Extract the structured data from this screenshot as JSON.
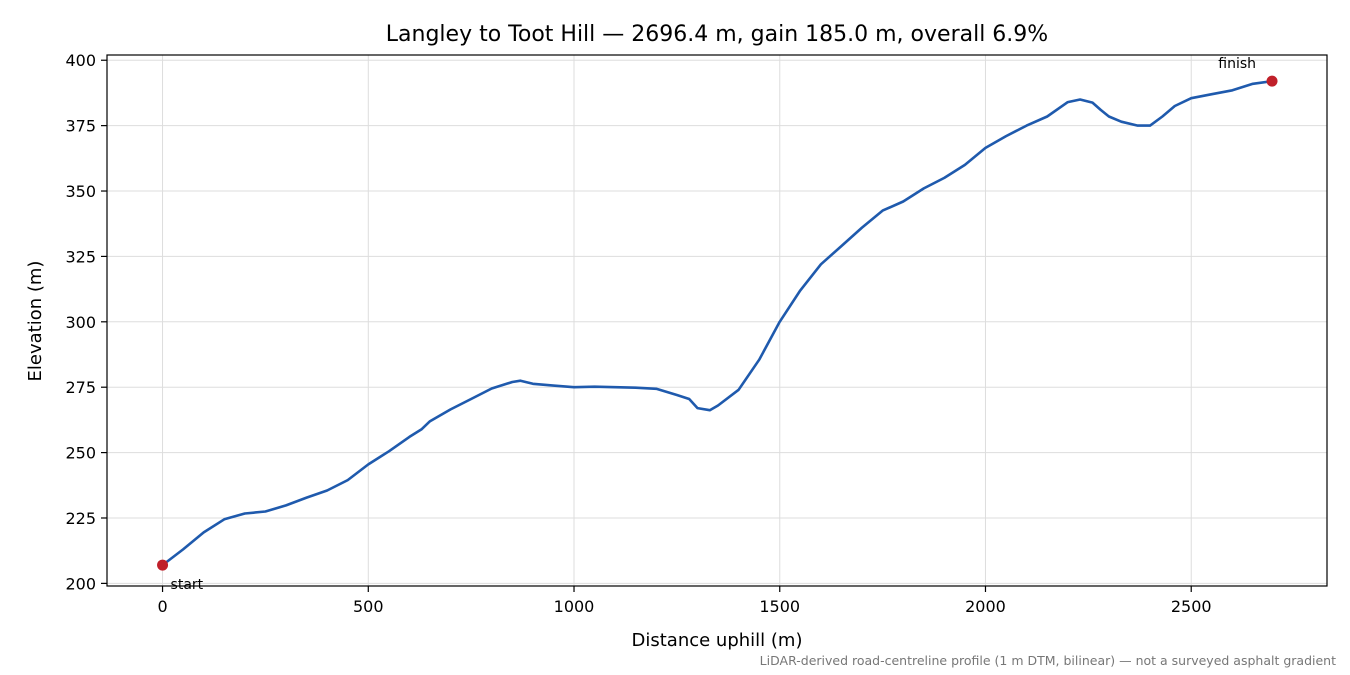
{
  "chart_data": {
    "type": "line",
    "title": "Langley to Toot Hill — 2696.4 m, gain 185.0 m, overall 6.9%",
    "xlabel": "Distance uphill (m)",
    "ylabel": "Elevation (m)",
    "xlim": [
      -135,
      2830
    ],
    "ylim": [
      199,
      402
    ],
    "xticks": [
      0,
      500,
      1000,
      1500,
      2000,
      2500
    ],
    "yticks": [
      200,
      225,
      250,
      275,
      300,
      325,
      350,
      375,
      400
    ],
    "grid": true,
    "line_color": "#1f5aad",
    "marker_color": "#c0202a",
    "series": [
      {
        "x": [
          0,
          50,
          100,
          150,
          200,
          250,
          300,
          350,
          400,
          450,
          500,
          550,
          600,
          630,
          650,
          700,
          750,
          800,
          850,
          870,
          900,
          950,
          1000,
          1050,
          1100,
          1150,
          1200,
          1250,
          1280,
          1300,
          1330,
          1350,
          1400,
          1450,
          1500,
          1550,
          1600,
          1650,
          1700,
          1750,
          1800,
          1850,
          1900,
          1950,
          2000,
          2050,
          2100,
          2150,
          2200,
          2230,
          2260,
          2280,
          2300,
          2330,
          2370,
          2400,
          2430,
          2460,
          2500,
          2550,
          2600,
          2650,
          2696.4
        ],
        "y": [
          207.0,
          213.0,
          219.5,
          224.5,
          226.7,
          227.5,
          229.8,
          232.8,
          235.5,
          239.5,
          245.5,
          250.5,
          256.0,
          259.0,
          262.0,
          266.5,
          270.5,
          274.5,
          277.0,
          277.5,
          276.3,
          275.6,
          275.0,
          275.2,
          275.0,
          274.8,
          274.4,
          272.0,
          270.5,
          267.0,
          266.2,
          268.0,
          274.0,
          285.5,
          300.0,
          312.0,
          322.0,
          329.0,
          336.0,
          342.5,
          346.0,
          351.0,
          355.0,
          360.0,
          366.5,
          371.0,
          375.0,
          378.5,
          384.0,
          385.0,
          383.8,
          381.0,
          378.5,
          376.5,
          375.0,
          375.0,
          378.5,
          382.5,
          385.5,
          387.0,
          388.5,
          391.0,
          392.0
        ]
      }
    ],
    "points": [
      {
        "label": "start",
        "x": 0,
        "y": 207.0
      },
      {
        "label": "finish",
        "x": 2696.4,
        "y": 392.0
      }
    ]
  },
  "footnote": "LiDAR-derived road-centreline profile (1 m DTM, bilinear) — not a surveyed asphalt gradient"
}
